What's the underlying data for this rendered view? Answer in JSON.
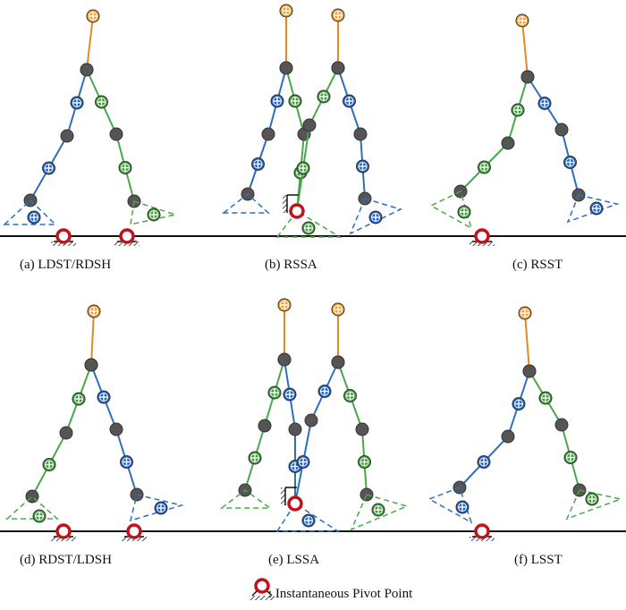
{
  "colors": {
    "blue": "#1f5fbf",
    "green": "#3f9a3a",
    "orange": "#f0a030",
    "gray": "#555555",
    "pivot": "#c0141c",
    "ground": "#111111",
    "blue_line": "#2e6fba",
    "green_line": "#4aa84a",
    "orange_line": "#e08a28"
  },
  "captions": [
    "(a) LDST/RDSH",
    "(b) RSSA",
    "(c) RSST",
    "(d) RDST/LDSH",
    "(e) LSSA",
    "(f) LSST"
  ],
  "legend": {
    "label": ": Instantaneous Pivot Point",
    "icon": "pivot-point-icon"
  }
}
